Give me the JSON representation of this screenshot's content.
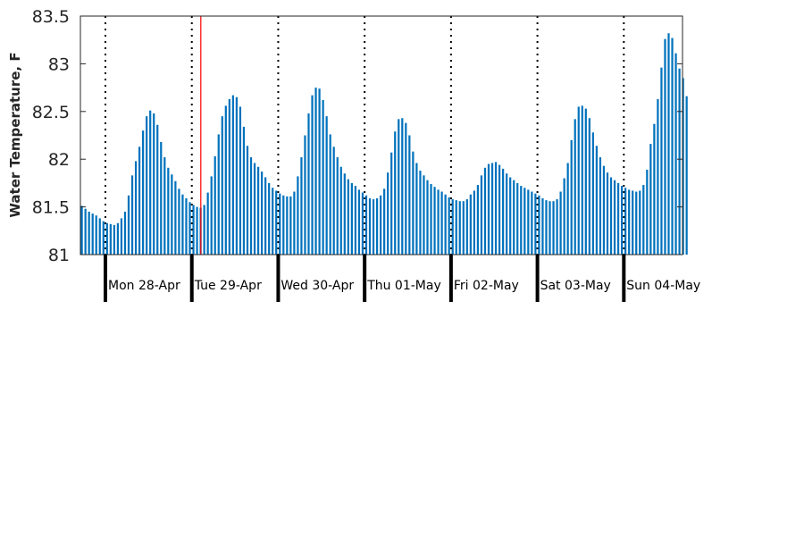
{
  "chart_data": {
    "type": "bar",
    "title": "",
    "xlabel": "",
    "ylabel": "Water Temperature, F",
    "ylim": [
      81,
      83.5
    ],
    "yticks": [
      "81",
      "81.5",
      "82",
      "82.5",
      "83",
      "83.5"
    ],
    "grid": false,
    "bar_color": "#0072bd",
    "day_labels": [
      "Mon 28-Apr",
      "Tue 29-Apr",
      "Wed 30-Apr",
      "Thu 01-May",
      "Fri 02-May",
      "Sat 03-May",
      "Sun 04-May"
    ],
    "day_boundaries_style": "dotted",
    "marker_color": "#ff0000",
    "marker_hours_after_start": 26.5,
    "hours_before_first_day": 7,
    "values": [
      81.51,
      81.48,
      81.45,
      81.43,
      81.41,
      81.38,
      81.35,
      81.33,
      81.32,
      81.31,
      81.33,
      81.38,
      81.45,
      81.62,
      81.83,
      81.98,
      82.13,
      82.3,
      82.45,
      82.51,
      82.48,
      82.36,
      82.18,
      82.02,
      81.91,
      81.84,
      81.77,
      81.69,
      81.63,
      81.59,
      81.55,
      81.52,
      81.5,
      81.49,
      81.52,
      81.65,
      81.82,
      82.03,
      82.26,
      82.45,
      82.56,
      82.63,
      82.67,
      82.65,
      82.55,
      82.34,
      82.14,
      82.02,
      81.96,
      81.92,
      81.87,
      81.81,
      81.75,
      81.7,
      81.67,
      81.64,
      81.62,
      81.61,
      81.61,
      81.66,
      81.82,
      82.02,
      82.25,
      82.48,
      82.67,
      82.75,
      82.74,
      82.62,
      82.45,
      82.26,
      82.13,
      82.02,
      81.92,
      81.85,
      81.79,
      81.75,
      81.72,
      81.68,
      81.65,
      81.62,
      81.59,
      81.58,
      81.59,
      81.62,
      81.69,
      81.86,
      82.07,
      82.29,
      82.42,
      82.43,
      82.38,
      82.25,
      82.08,
      81.96,
      81.88,
      81.83,
      81.78,
      81.74,
      81.71,
      81.68,
      81.66,
      81.63,
      81.6,
      81.58,
      81.57,
      81.56,
      81.56,
      81.58,
      81.63,
      81.67,
      81.73,
      81.83,
      81.91,
      81.95,
      81.96,
      81.97,
      81.94,
      81.9,
      81.85,
      81.81,
      81.78,
      81.75,
      81.72,
      81.7,
      81.68,
      81.66,
      81.64,
      81.62,
      81.59,
      81.57,
      81.56,
      81.56,
      81.58,
      81.66,
      81.8,
      81.96,
      82.2,
      82.42,
      82.55,
      82.56,
      82.53,
      82.43,
      82.28,
      82.14,
      82.02,
      81.93,
      81.86,
      81.81,
      81.78,
      81.75,
      81.72,
      81.7,
      81.68,
      81.67,
      81.66,
      81.67,
      81.73,
      81.89,
      82.16,
      82.37,
      82.63,
      82.96,
      83.26,
      83.32,
      83.27,
      83.11,
      82.95,
      82.85,
      82.66
    ]
  }
}
